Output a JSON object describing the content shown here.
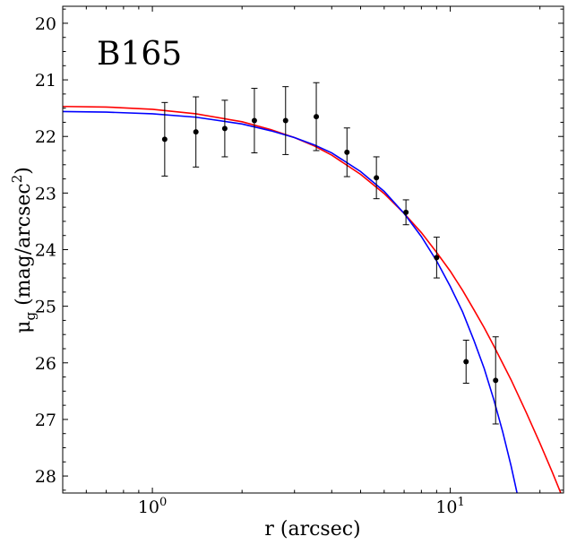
{
  "chart_data": {
    "type": "scatter",
    "annotation": "B165",
    "xlabel": "r (arcsec)",
    "ylabel_main": "μ",
    "ylabel_sub": "g",
    "ylabel_rest": " (mag/arcsec",
    "ylabel_sup": "2",
    "ylabel_close": ")",
    "xscale": "log",
    "xlim": [
      0.5,
      24
    ],
    "ylim": [
      28.3,
      19.7
    ],
    "y_inverted": true,
    "grid": false,
    "x_major_ticks": [
      {
        "value": 1,
        "base": "10",
        "exp": "0"
      },
      {
        "value": 10,
        "base": "10",
        "exp": "1"
      }
    ],
    "y_ticks": [
      20,
      21,
      22,
      23,
      24,
      25,
      26,
      27,
      28
    ],
    "y_tick_labels": [
      "20",
      "21",
      "22",
      "23",
      "24",
      "25",
      "26",
      "27",
      "28"
    ],
    "observed": {
      "x": [
        1.1,
        1.4,
        1.75,
        2.2,
        2.8,
        3.55,
        4.5,
        5.65,
        7.1,
        9.0,
        11.3,
        14.2
      ],
      "y": [
        22.05,
        21.92,
        21.86,
        21.72,
        21.72,
        21.65,
        22.28,
        22.73,
        23.34,
        24.14,
        25.98,
        26.31
      ],
      "err_low": [
        0.65,
        0.62,
        0.5,
        0.57,
        0.6,
        0.6,
        0.43,
        0.37,
        0.22,
        0.36,
        0.38,
        0.77
      ],
      "err_high": [
        0.65,
        0.62,
        0.5,
        0.57,
        0.6,
        0.6,
        0.43,
        0.37,
        0.22,
        0.36,
        0.38,
        0.77
      ],
      "color": "#000000"
    },
    "series": [
      {
        "color": "#ff0000",
        "x": [
          0.5,
          0.7,
          1.0,
          1.4,
          2.0,
          2.5,
          3.0,
          3.5,
          4.0,
          5.0,
          6.0,
          7.0,
          8.0,
          9.0,
          10.0,
          11.0,
          12.0,
          13.0,
          14.0,
          16.0,
          18.0,
          20.0,
          22.0,
          24.0
        ],
        "y": [
          21.47,
          21.48,
          21.52,
          21.6,
          21.74,
          21.88,
          22.02,
          22.17,
          22.33,
          22.67,
          23.01,
          23.36,
          23.7,
          24.05,
          24.38,
          24.72,
          25.06,
          25.38,
          25.7,
          26.3,
          26.88,
          27.42,
          27.93,
          28.42
        ]
      },
      {
        "color": "#0000ff",
        "x": [
          0.5,
          0.7,
          1.0,
          1.4,
          2.0,
          2.5,
          3.0,
          3.5,
          4.0,
          5.0,
          6.0,
          7.0,
          8.0,
          9.0,
          10.0,
          11.0,
          12.0,
          13.0,
          14.0,
          15.0,
          16.0,
          17.0
        ],
        "y": [
          21.56,
          21.57,
          21.6,
          21.66,
          21.78,
          21.9,
          22.02,
          22.15,
          22.29,
          22.62,
          22.97,
          23.36,
          23.77,
          24.2,
          24.65,
          25.1,
          25.6,
          26.1,
          26.65,
          27.22,
          27.82,
          28.45
        ]
      }
    ]
  }
}
